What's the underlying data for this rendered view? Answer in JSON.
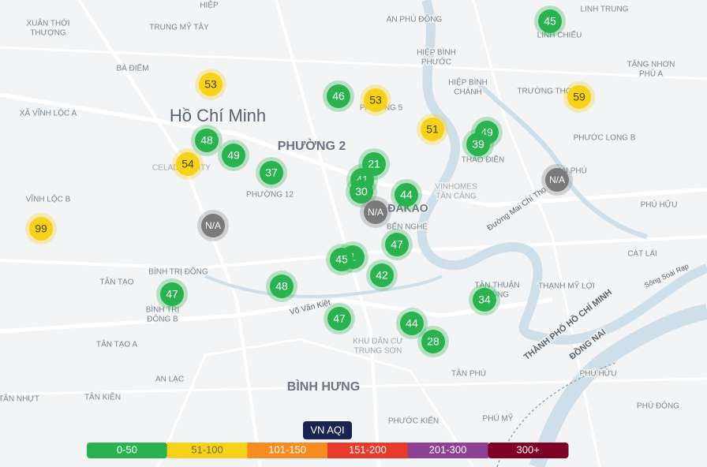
{
  "places": [
    {
      "label": [
        "HIỆP"
      ]
    },
    {
      "label": [
        "XUÂN THỚI",
        "THƯỢNG"
      ]
    },
    {
      "label": [
        "TRUNG MỸ TÂY"
      ]
    },
    {
      "label": [
        "AN PHÚ ĐÔNG"
      ]
    },
    {
      "label": [
        "LINH TRUNG"
      ]
    },
    {
      "label": [
        "LINH CHIỂU"
      ]
    },
    {
      "label": [
        "HIỆP BÌNH",
        "PHƯỚC"
      ]
    },
    {
      "label": [
        "BÀ ĐIỂM"
      ]
    },
    {
      "label": [
        "TĂNG NHƠN",
        "PHÚ A"
      ]
    },
    {
      "label": [
        "HIỆP BÌNH",
        "CHÁNH"
      ]
    },
    {
      "label": [
        "TRƯỜNG THỌ"
      ]
    },
    {
      "label": [
        "XÃ VĨNH LỘC A"
      ]
    },
    {
      "label": [
        "Hồ Chí Minh"
      ]
    },
    {
      "label": [
        "PHƯỜNG 5"
      ]
    },
    {
      "label": [
        "PHƯỜNG 2"
      ]
    },
    {
      "label": [
        "PHƯỚC LONG B"
      ]
    },
    {
      "label": [
        "THẢO ĐIỀN"
      ]
    },
    {
      "label": [
        "CELADON CITY"
      ]
    },
    {
      "label": [
        "AN PHÚ"
      ]
    },
    {
      "label": [
        "VINHOMES",
        "TÂN CẢNG"
      ]
    },
    {
      "label": [
        "PHƯỜNG 12"
      ]
    },
    {
      "label": [
        "VĨNH LỘC B"
      ]
    },
    {
      "label": [
        "ĐAKAO"
      ]
    },
    {
      "label": [
        "BẾN NGHÉ"
      ]
    },
    {
      "label": [
        "PHÚ HỮU"
      ]
    },
    {
      "label": [
        "CÁT LÁI"
      ]
    },
    {
      "label": [
        "BÌNH TRỊ ĐÔNG"
      ]
    },
    {
      "label": [
        "TÂN TẠO"
      ]
    },
    {
      "label": [
        "TÂN THUẬN",
        "ĐÔNG"
      ]
    },
    {
      "label": [
        "THẠNH MỸ LỢI"
      ]
    },
    {
      "label": [
        "BÌNH TRỊ",
        "ĐÔNG B"
      ]
    },
    {
      "label": [
        "Võ Văn Kiệt"
      ]
    },
    {
      "label": [
        "KHU DÂN CƯ",
        "TRUNG SƠN"
      ]
    },
    {
      "label": [
        "TÂN TẠO A"
      ]
    },
    {
      "label": [
        "THÀNH PHỐ HỒ CHÍ MINH"
      ]
    },
    {
      "label": [
        "ĐỒNG NAI"
      ]
    },
    {
      "label": [
        "AN LẠC"
      ]
    },
    {
      "label": [
        "TÂN PHÚ"
      ]
    },
    {
      "label": [
        "PHÚ HỮU"
      ]
    },
    {
      "label": [
        "BÌNH HƯNG"
      ]
    },
    {
      "label": [
        "TÂN NHỰT"
      ]
    },
    {
      "label": [
        "TÂN KIÊN"
      ]
    },
    {
      "label": [
        "PHƯỚC KIỂN"
      ]
    },
    {
      "label": [
        "PHÚ MỸ"
      ]
    },
    {
      "label": [
        "PHÚ ĐÔNG"
      ]
    },
    {
      "label": [
        "Đường Mai Chí Thọ"
      ]
    },
    {
      "label": [
        "Sông Soài Rạp"
      ]
    }
  ],
  "markers": [
    {
      "value": 45,
      "color": "#2ab24f",
      "text_color": "#ffffff"
    },
    {
      "value": 53,
      "color": "#f7d21b",
      "text_color": "#4a3e00"
    },
    {
      "value": 46,
      "color": "#2ab24f",
      "text_color": "#ffffff"
    },
    {
      "value": 53,
      "color": "#f7d21b",
      "text_color": "#4a3e00"
    },
    {
      "value": 59,
      "color": "#f7d21b",
      "text_color": "#4a3e00"
    },
    {
      "value": 51,
      "color": "#f7d21b",
      "text_color": "#4a3e00"
    },
    {
      "value": 49,
      "color": "#2ab24f",
      "text_color": "#ffffff"
    },
    {
      "value": 39,
      "color": "#2ab24f",
      "text_color": "#ffffff"
    },
    {
      "value": 48,
      "color": "#2ab24f",
      "text_color": "#ffffff"
    },
    {
      "value": 49,
      "color": "#2ab24f",
      "text_color": "#ffffff"
    },
    {
      "value": 54,
      "color": "#f7d21b",
      "text_color": "#4a3e00"
    },
    {
      "value": 37,
      "color": "#2ab24f",
      "text_color": "#ffffff"
    },
    {
      "value": 21,
      "color": "#2ab24f",
      "text_color": "#ffffff"
    },
    {
      "value": 41,
      "color": "#2ab24f",
      "text_color": "#ffffff"
    },
    {
      "value": "N/A",
      "color": "#7a7a7a",
      "text_color": "#ffffff"
    },
    {
      "value": 30,
      "color": "#2ab24f",
      "text_color": "#ffffff"
    },
    {
      "value": 44,
      "color": "#2ab24f",
      "text_color": "#ffffff"
    },
    {
      "value": "N/A",
      "color": "#7a7a7a",
      "text_color": "#ffffff"
    },
    {
      "value": "N/A",
      "color": "#7a7a7a",
      "text_color": "#ffffff"
    },
    {
      "value": 99,
      "color": "#f7d21b",
      "text_color": "#4a3e00"
    },
    {
      "value": 47,
      "color": "#2ab24f",
      "text_color": "#ffffff"
    },
    {
      "value": 1,
      "color": "#2ab24f",
      "text_color": "#ffffff"
    },
    {
      "value": 45,
      "color": "#2ab24f",
      "text_color": "#ffffff"
    },
    {
      "value": 42,
      "color": "#2ab24f",
      "text_color": "#ffffff"
    },
    {
      "value": 48,
      "color": "#2ab24f",
      "text_color": "#ffffff"
    },
    {
      "value": 47,
      "color": "#2ab24f",
      "text_color": "#ffffff"
    },
    {
      "value": 34,
      "color": "#2ab24f",
      "text_color": "#ffffff"
    },
    {
      "value": 47,
      "color": "#2ab24f",
      "text_color": "#ffffff"
    },
    {
      "value": 44,
      "color": "#2ab24f",
      "text_color": "#ffffff"
    },
    {
      "value": 28,
      "color": "#2ab24f",
      "text_color": "#ffffff"
    }
  ],
  "legend": {
    "title": "VN AQI",
    "items": [
      {
        "label": "0-50",
        "color": "#2ab24f",
        "text_color": "#ffffff"
      },
      {
        "label": "51-100",
        "color": "#f7d21b",
        "text_color": "#7a6a20"
      },
      {
        "label": "101-150",
        "color": "#f68b1f",
        "text_color": "#ffffff"
      },
      {
        "label": "151-200",
        "color": "#e53a2c",
        "text_color": "#ffffff"
      },
      {
        "label": "201-300",
        "color": "#8e3f96",
        "text_color": "#ffffff"
      },
      {
        "label": "300+",
        "color": "#7e0023",
        "text_color": "#ffffff"
      }
    ]
  }
}
